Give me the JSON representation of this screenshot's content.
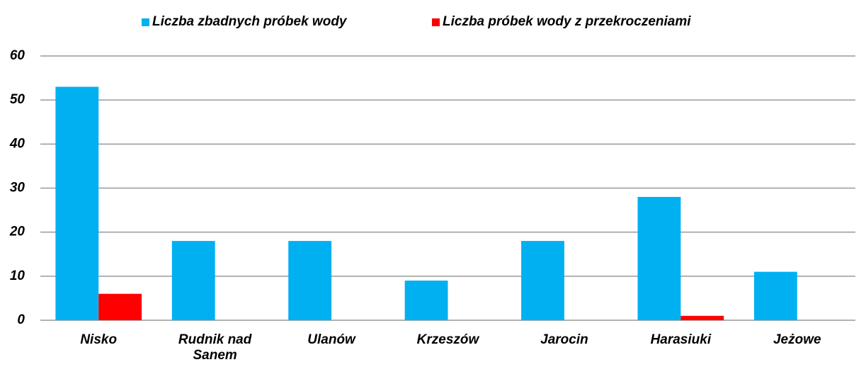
{
  "chart_data": {
    "type": "bar",
    "categories": [
      "Nisko",
      "Rudnik nad Sanem",
      "Ulanów",
      "Krzeszów",
      "Jarocin",
      "Harasiuki",
      "Jeżowe"
    ],
    "series": [
      {
        "name": "Liczba zbadnych próbek wody",
        "color": "#00b0f0",
        "values": [
          53,
          18,
          18,
          9,
          18,
          28,
          11
        ]
      },
      {
        "name": "Liczba próbek wody z przekroczeniami",
        "color": "#ff0000",
        "values": [
          6,
          0,
          0,
          0,
          0,
          1,
          0
        ]
      }
    ],
    "ylim": [
      0,
      60
    ],
    "yticks": [
      0,
      10,
      20,
      30,
      40,
      50,
      60
    ],
    "grid": true,
    "legend": "top"
  }
}
